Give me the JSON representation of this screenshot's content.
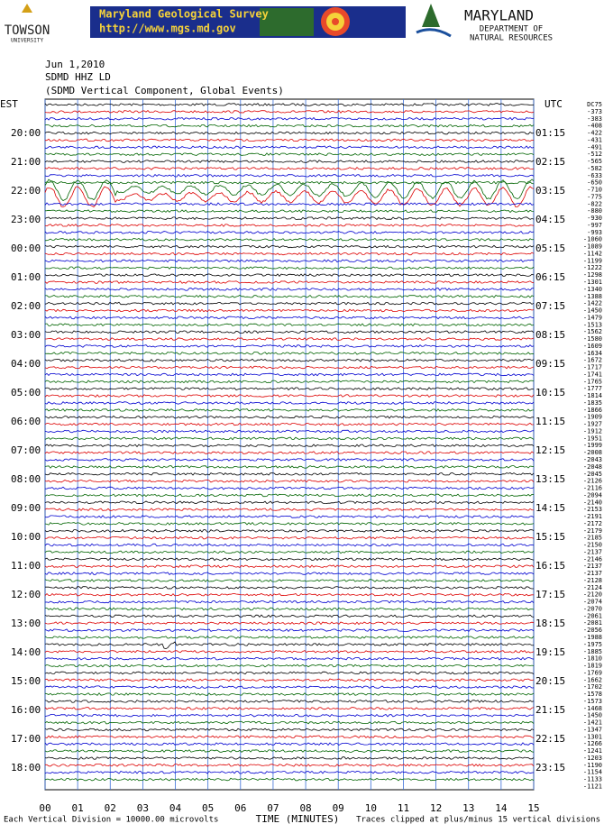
{
  "header": {
    "towson": "TOWSON",
    "towson_sub": "UNIVERSITY",
    "banner_title": "Maryland Geological Survey",
    "banner_url": "http://www.mgs.md.gov",
    "dnr_title": "MARYLAND",
    "dnr_sub1": "DEPARTMENT OF",
    "dnr_sub2": "NATURAL RESOURCES"
  },
  "info": {
    "date": "Jun 1,2010",
    "station": "SDMD HHZ LD",
    "description": "(SDMD Vertical Component, Global Events)"
  },
  "left_header": "EST",
  "right_header": "UTC",
  "est_labels": [
    "20:00",
    "21:00",
    "22:00",
    "23:00",
    "00:00",
    "01:00",
    "02:00",
    "03:00",
    "04:00",
    "05:00",
    "06:00",
    "07:00",
    "08:00",
    "09:00",
    "10:00",
    "11:00",
    "12:00",
    "13:00",
    "14:00",
    "15:00",
    "16:00",
    "17:00",
    "18:00"
  ],
  "utc_labels": [
    "01:15",
    "02:15",
    "03:15",
    "04:15",
    "05:15",
    "06:15",
    "07:15",
    "08:15",
    "09:15",
    "10:15",
    "11:15",
    "12:15",
    "13:15",
    "14:15",
    "15:15",
    "16:15",
    "17:15",
    "18:15",
    "19:15",
    "20:15",
    "21:15",
    "22:15",
    "23:15"
  ],
  "offset_header": "DC75",
  "offsets": [
    -373,
    -383,
    -408,
    -422,
    -431,
    -491,
    -512,
    -565,
    -582,
    -633,
    -650,
    -710,
    -775,
    -822,
    -880,
    -930,
    -997,
    -993,
    -1060,
    -1089,
    -1142,
    -1199,
    -1222,
    -1298,
    -1301,
    -1340,
    -1388,
    -1422,
    -1450,
    -1479,
    -1513,
    -1562,
    -1580,
    -1609,
    -1634,
    -1672,
    -1717,
    -1741,
    -1765,
    -1777,
    -1814,
    -1835,
    -1866,
    -1909,
    -1927,
    -1912,
    -1951,
    -1999,
    -2008,
    -2043,
    -2048,
    -2045,
    -2126,
    -2116,
    -2094,
    -2140,
    -2153,
    -2191,
    -2172,
    -2179,
    -2185,
    -2150,
    -2137,
    -2146,
    -2137,
    -2137,
    -2128,
    -2124,
    -2120,
    -2074,
    -2070,
    -2061,
    -2081,
    -2056,
    -1988,
    -1975,
    -1885,
    -1810,
    -1819,
    -1769,
    -1662,
    -1702,
    -1578,
    -1573,
    -1468,
    -1450,
    -1421,
    -1347,
    -1301,
    -1266,
    -1241,
    -1203,
    -1190,
    -1154,
    -1133,
    -1121
  ],
  "x_labels": [
    "00",
    "01",
    "02",
    "03",
    "04",
    "05",
    "06",
    "07",
    "08",
    "09",
    "10",
    "11",
    "12",
    "13",
    "14",
    "15"
  ],
  "footer": {
    "left": "Each Vertical Division = 10000.00 microvolts",
    "center": "TIME (MINUTES)",
    "right": "Traces clipped at plus/minus 15 vertical divisions"
  }
}
